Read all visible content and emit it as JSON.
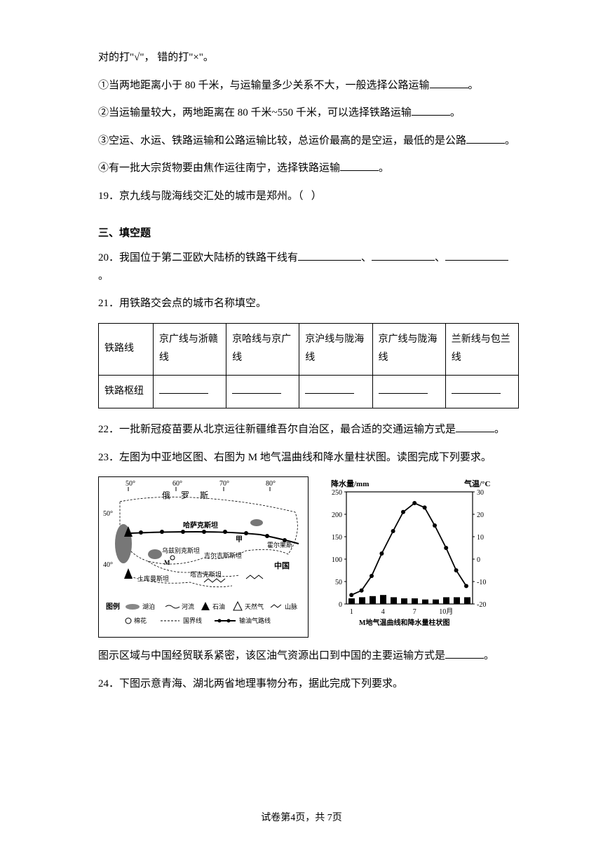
{
  "intro_lines": {
    "l0": "对的打\"√\"，  错的打\"×\"。",
    "l1_pre": "①当两地距离小于 80 千米，与运输量多少关系不大，一般选择公路运输",
    "l1_post": "。",
    "l2_pre": "②当运输量较大，两地距离在 80 千米~550 千米，可以选择铁路运输",
    "l2_post": "。",
    "l3_pre": "③空运、水运、铁路运输和公路运输比较，总运价最高的是空运，最低的是公路",
    "l3_post": "。",
    "l4_pre": "④有一批大宗货物要由焦作运往南宁，选择铁路运输",
    "l4_post": "。"
  },
  "q19_pre": "19．京九线与陇海线交汇处的城市是郑州。（",
  "q19_post": "）",
  "section3": "三、填空题",
  "q20_pre": "20．我国位于第二亚欧大陆桥的铁路干线有",
  "q20_sep": "、",
  "q20_post": "。",
  "q21": "21．用铁路交会点的城市名称填空。",
  "table": {
    "row1_head": "铁路线",
    "row1_cells": [
      "京广线与浙赣线",
      "京哈线与京广线",
      "京沪线与陇海线",
      "京广线与陇海线",
      "兰新线与包兰线"
    ],
    "row2_head": "铁路枢纽"
  },
  "q22_pre": "22．一批新冠疫苗要从北京运往新疆维吾尔自治区，最合适的交通运输方式是",
  "q22_post": "。",
  "q23": "23．左图为中亚地区图、右图为 M 地气温曲线和降水量柱状图。读图完成下列要求。",
  "map": {
    "lons": [
      "50°",
      "60°",
      "70°",
      "80°"
    ],
    "lat50": "50°",
    "lat40": "40°",
    "country_russia": "俄  罗  斯",
    "kazakhstan": "哈萨克斯坦",
    "uzbekistan": "乌兹别克斯坦",
    "turkmenistan": "土库曼斯坦",
    "tajikistan": "塔吉克斯坦",
    "kyrgyzstan": "吉尔吉斯斯坦",
    "jia": "甲",
    "m_label": "M",
    "china": "中国",
    "huoerguosi": "霍尔果斯",
    "legend_title": "图例",
    "legend_items": [
      "湖泊",
      "河流",
      "石油",
      "天然气",
      "山脉",
      "棉花",
      "国界线",
      "输油气路线"
    ]
  },
  "chart": {
    "y_left_label": "降水量/mm",
    "y_right_label": "气温/°C",
    "y_left_ticks": [
      "250",
      "200",
      "150",
      "100",
      "50",
      "0"
    ],
    "y_right_ticks": [
      "30",
      "20",
      "10",
      "0",
      "-10",
      "-20"
    ],
    "x_ticks": [
      "1",
      "4",
      "7",
      "10月"
    ],
    "caption": "M地气温曲线和降水量柱状图",
    "temp_points": [
      {
        "x": 0.04,
        "y": 0.92
      },
      {
        "x": 0.12,
        "y": 0.88
      },
      {
        "x": 0.2,
        "y": 0.75
      },
      {
        "x": 0.28,
        "y": 0.55
      },
      {
        "x": 0.37,
        "y": 0.35
      },
      {
        "x": 0.45,
        "y": 0.18
      },
      {
        "x": 0.54,
        "y": 0.1
      },
      {
        "x": 0.62,
        "y": 0.14
      },
      {
        "x": 0.7,
        "y": 0.3
      },
      {
        "x": 0.79,
        "y": 0.5
      },
      {
        "x": 0.87,
        "y": 0.7
      },
      {
        "x": 0.95,
        "y": 0.84
      }
    ],
    "precip_heights": [
      0.05,
      0.06,
      0.07,
      0.08,
      0.06,
      0.05,
      0.05,
      0.04,
      0.04,
      0.06,
      0.06,
      0.06
    ]
  },
  "q23b_pre": "图示区域与中国经贸联系紧密，该区油气资源出口到中国的主要运输方式是",
  "q23b_post": "。",
  "q24": "24．下图示意青海、湖北两省地理事物分布，据此完成下列要求。",
  "footer_pre": "试卷第4页，共 7页",
  "colors": {
    "text": "#000000",
    "bg": "#ffffff",
    "border": "#000000",
    "water": "#888888"
  }
}
